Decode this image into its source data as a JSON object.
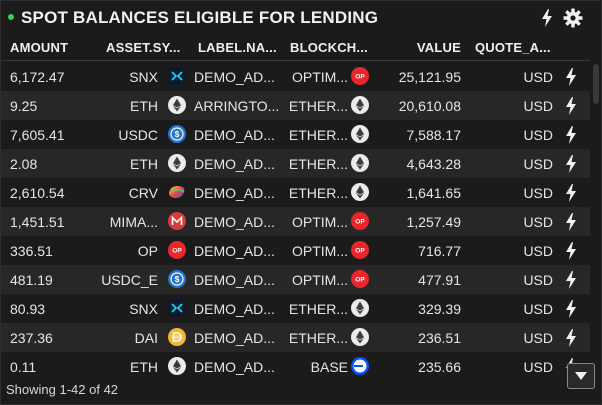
{
  "widget": {
    "title": "SPOT BALANCES ELIGIBLE FOR LENDING",
    "footer": "Showing 1-42 of 42"
  },
  "columns": {
    "amount": "AMOUNT",
    "asset": "ASSET.SY...",
    "label": "LABEL.NA...",
    "chain": "BLOCKCH...",
    "value": "VALUE",
    "quote": "QUOTE_A..."
  },
  "colors": {
    "background": "#1b1b1b",
    "row_alt": "#272727",
    "status_dot": "#3ecf4a",
    "op_red": "#e8262c",
    "usdc_blue": "#2775ca",
    "dai_yellow": "#f4b731",
    "mim_red": "#d63b3b"
  },
  "rows": [
    {
      "amount": "6,172.47",
      "asset": "SNX",
      "asset_icon": "snx-icon",
      "label": "DEMO_AD...",
      "chain": "OPTIM...",
      "chain_icon": "optimism-icon",
      "value": "25,121.95",
      "quote": "USD"
    },
    {
      "amount": "9.25",
      "asset": "ETH",
      "asset_icon": "eth-icon",
      "label": "ARRINGTO...",
      "chain": "ETHER...",
      "chain_icon": "ethereum-icon",
      "value": "20,610.08",
      "quote": "USD"
    },
    {
      "amount": "7,605.41",
      "asset": "USDC",
      "asset_icon": "usdc-icon",
      "label": "DEMO_AD...",
      "chain": "ETHER...",
      "chain_icon": "ethereum-icon",
      "value": "7,588.17",
      "quote": "USD"
    },
    {
      "amount": "2.08",
      "asset": "ETH",
      "asset_icon": "eth-icon",
      "label": "DEMO_AD...",
      "chain": "ETHER...",
      "chain_icon": "ethereum-icon",
      "value": "4,643.28",
      "quote": "USD"
    },
    {
      "amount": "2,610.54",
      "asset": "CRV",
      "asset_icon": "crv-icon",
      "label": "DEMO_AD...",
      "chain": "ETHER...",
      "chain_icon": "ethereum-icon",
      "value": "1,641.65",
      "quote": "USD"
    },
    {
      "amount": "1,451.51",
      "asset": "MIMA...",
      "asset_icon": "mim-icon",
      "label": "DEMO_AD...",
      "chain": "OPTIM...",
      "chain_icon": "optimism-icon",
      "value": "1,257.49",
      "quote": "USD"
    },
    {
      "amount": "336.51",
      "asset": "OP",
      "asset_icon": "op-icon",
      "label": "DEMO_AD...",
      "chain": "OPTIM...",
      "chain_icon": "optimism-icon",
      "value": "716.77",
      "quote": "USD"
    },
    {
      "amount": "481.19",
      "asset": "USDC_E",
      "asset_icon": "usdc-icon",
      "label": "DEMO_AD...",
      "chain": "OPTIM...",
      "chain_icon": "optimism-icon",
      "value": "477.91",
      "quote": "USD"
    },
    {
      "amount": "80.93",
      "asset": "SNX",
      "asset_icon": "snx-icon",
      "label": "DEMO_AD...",
      "chain": "ETHER...",
      "chain_icon": "ethereum-icon",
      "value": "329.39",
      "quote": "USD"
    },
    {
      "amount": "237.36",
      "asset": "DAI",
      "asset_icon": "dai-icon",
      "label": "DEMO_AD...",
      "chain": "ETHER...",
      "chain_icon": "ethereum-icon",
      "value": "236.51",
      "quote": "USD"
    },
    {
      "amount": "0.11",
      "asset": "ETH",
      "asset_icon": "eth-icon",
      "label": "DEMO_AD...",
      "chain": "BASE",
      "chain_icon": "base-icon",
      "value": "235.66",
      "quote": "USD"
    }
  ]
}
